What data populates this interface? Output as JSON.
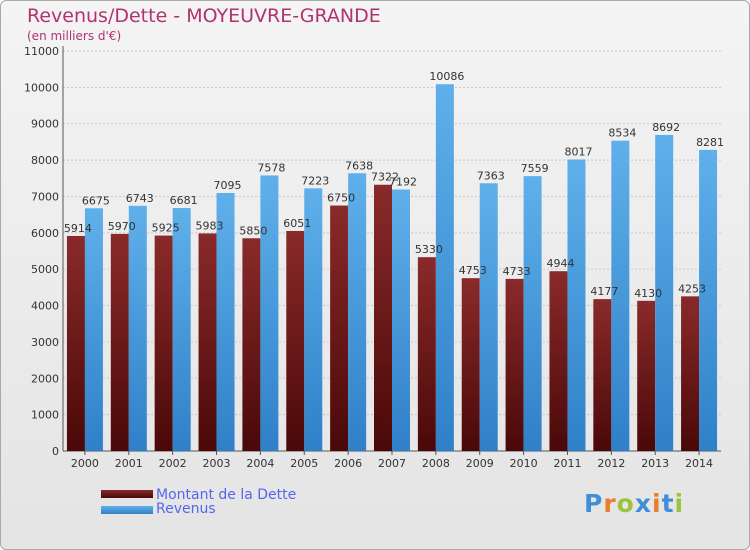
{
  "chart_data": {
    "type": "bar",
    "title": "Revenus/Dette - MOYEUVRE-GRANDE",
    "subtitle": "(en milliers d'€)",
    "xlabel": "",
    "ylabel": "",
    "ylim": [
      0,
      11000
    ],
    "yticks": [
      0,
      1000,
      2000,
      3000,
      4000,
      5000,
      6000,
      7000,
      8000,
      9000,
      10000,
      11000
    ],
    "grid": true,
    "categories": [
      "2000",
      "2001",
      "2002",
      "2003",
      "2004",
      "2005",
      "2006",
      "2007",
      "2008",
      "2009",
      "2010",
      "2011",
      "2012",
      "2013",
      "2014"
    ],
    "series": [
      {
        "name": "Montant de la Dette",
        "color": "#6b1a1a",
        "values": [
          5914,
          5970,
          5925,
          5983,
          5850,
          6051,
          6750,
          7322,
          5330,
          4753,
          4733,
          4944,
          4177,
          4130,
          4253
        ],
        "labels": [
          "5914",
          "5970",
          "5925",
          "5983",
          "5850",
          "6051",
          "6750",
          "7322",
          "5330",
          "4753",
          "4733",
          "4944",
          "4177",
          "4130",
          "4253"
        ]
      },
      {
        "name": "Revenus",
        "color": "#4d9ee0",
        "values": [
          6675,
          6743,
          6681,
          7095,
          7578,
          7223,
          7638,
          7192,
          10086,
          7363,
          7559,
          8017,
          8534,
          8692,
          8281
        ],
        "labels": [
          "6675",
          "6743",
          "6681",
          "7095",
          "7578",
          "7223",
          "7638",
          "7192",
          "10086",
          "7363",
          "7559",
          "8017",
          "8534",
          "8692",
          "8281"
        ]
      }
    ],
    "legend": [
      {
        "label": "Montant de la Dette",
        "color": "#6b1a1a"
      },
      {
        "label": "Revenus",
        "color": "#4d9ee0"
      }
    ]
  },
  "logo": {
    "letters": [
      "P",
      "r",
      "o",
      "x",
      "i",
      "t",
      "i"
    ],
    "colors": [
      "#3f8fd8",
      "#e87f2a",
      "#9bc43a",
      "#3f8fd8",
      "#e87f2a",
      "#3f8fd8",
      "#9bc43a"
    ]
  }
}
